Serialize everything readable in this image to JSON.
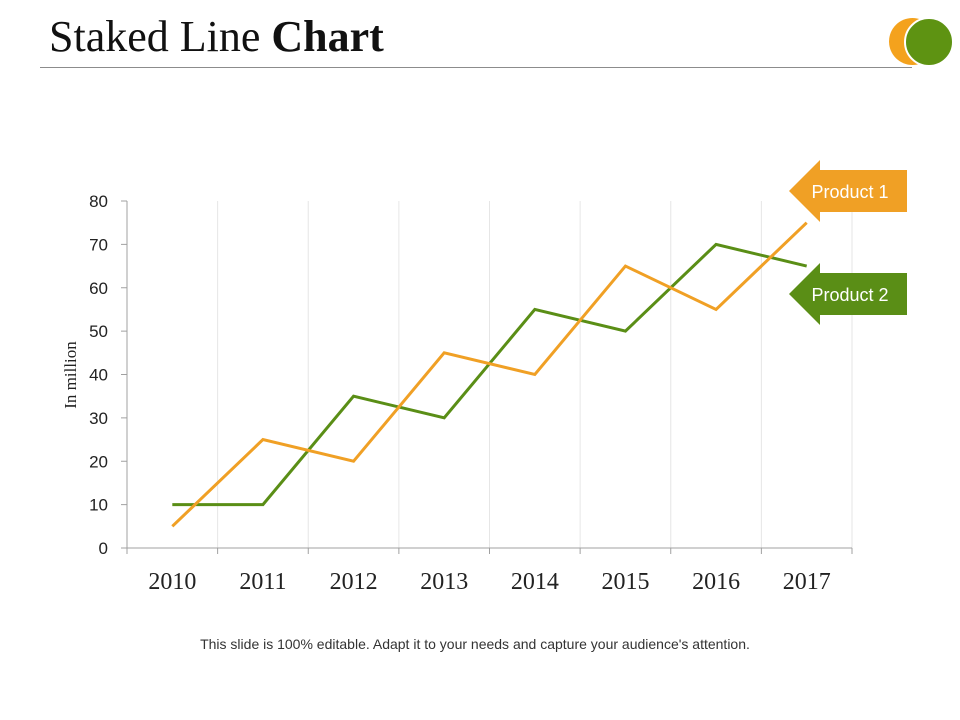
{
  "slide": {
    "title_normal": "Staked Line ",
    "title_bold": "Chart",
    "footer": "This slide is 100% editable. Adapt it to your needs and capture your audience's attention."
  },
  "colors": {
    "product1": "#f0a025",
    "product2": "#5a8e16",
    "grid": "#e6e6e6",
    "axis": "#a0a0a0"
  },
  "chart_data": {
    "type": "line",
    "x": [
      "2010",
      "2011",
      "2012",
      "2013",
      "2014",
      "2015",
      "2016",
      "2017"
    ],
    "series": [
      {
        "name": "Product 1",
        "values": [
          5,
          25,
          20,
          45,
          40,
          65,
          55,
          75
        ]
      },
      {
        "name": "Product 2",
        "values": [
          10,
          10,
          35,
          30,
          55,
          50,
          70,
          65
        ]
      }
    ],
    "ylabel": "In million",
    "ylim": [
      0,
      80
    ],
    "yticks": [
      0,
      10,
      20,
      30,
      40,
      50,
      60,
      70,
      80
    ],
    "grid": "vertical",
    "legend": "right, arrow callouts at line ends"
  }
}
